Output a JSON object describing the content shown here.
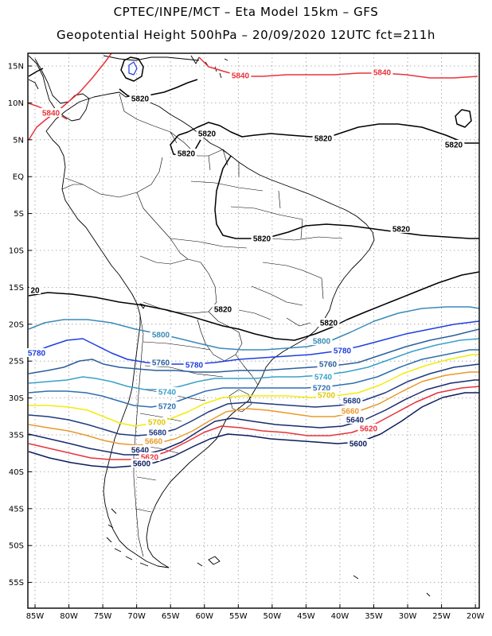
{
  "header": {
    "line1": "CPTEC/INPE/MCT –  Eta Model 15km – GFS",
    "line2": "Geopotential Height 500hPa – 20/09/2020 12UTC fct=211h"
  },
  "axes": {
    "lat_labels": [
      "15N",
      "10N",
      "5N",
      "EQ",
      "5S",
      "10S",
      "15S",
      "20S",
      "25S",
      "30S",
      "35S",
      "40S",
      "45S",
      "50S",
      "55S"
    ],
    "lon_labels": [
      "85W",
      "80W",
      "75W",
      "70W",
      "65W",
      "60W",
      "55W",
      "50W",
      "45W",
      "40W",
      "35W",
      "30W",
      "25W",
      "20W"
    ]
  },
  "colors": {
    "c5600": "#0b1c5c",
    "c5620": "#e8333a",
    "c5640": "#1a2a6c",
    "c5660": "#e89a2a",
    "c5680": "#1f3a80",
    "c5700": "#f2ec0c",
    "c5720": "#2f6fb0",
    "c5740": "#3aa0c8",
    "c5760": "#2a5f9e",
    "c5780": "#1e3ee0",
    "c5800": "#3a8ab8",
    "c5820": "#000000",
    "c5840": "#e8333a",
    "coast": "#000000",
    "grid": "#9a9a9a"
  },
  "contour_labels": [
    {
      "text": "5840",
      "color": "#e8333a"
    },
    {
      "text": "5840",
      "color": "#e8333a"
    },
    {
      "text": "5840",
      "color": "#e8333a"
    },
    {
      "text": "5820",
      "color": "#000000"
    },
    {
      "text": "5820",
      "color": "#000000"
    },
    {
      "text": "5820",
      "color": "#000000"
    },
    {
      "text": "5820",
      "color": "#000000"
    },
    {
      "text": "5820",
      "color": "#000000"
    },
    {
      "text": "5820",
      "color": "#000000"
    },
    {
      "text": "5820",
      "color": "#000000"
    },
    {
      "text": "5820",
      "color": "#000000"
    },
    {
      "text": "5820",
      "color": "#000000"
    },
    {
      "text": "20",
      "color": "#000000"
    },
    {
      "text": "5800",
      "color": "#3a8ab8"
    },
    {
      "text": "5800",
      "color": "#3a8ab8"
    },
    {
      "text": "5780",
      "color": "#1e3ee0"
    },
    {
      "text": "5780",
      "color": "#1e3ee0"
    },
    {
      "text": "5780",
      "color": "#1e3ee0"
    },
    {
      "text": "5760",
      "color": "#2a5f9e"
    },
    {
      "text": "5760",
      "color": "#2a5f9e"
    },
    {
      "text": "5740",
      "color": "#3aa0c8"
    },
    {
      "text": "5740",
      "color": "#3aa0c8"
    },
    {
      "text": "5720",
      "color": "#2f6fb0"
    },
    {
      "text": "5720",
      "color": "#2f6fb0"
    },
    {
      "text": "5700",
      "color": "#e0c800"
    },
    {
      "text": "5700",
      "color": "#e0c800"
    },
    {
      "text": "5680",
      "color": "#1f3a80"
    },
    {
      "text": "5680",
      "color": "#1f3a80"
    },
    {
      "text": "5660",
      "color": "#e89a2a"
    },
    {
      "text": "5660",
      "color": "#e89a2a"
    },
    {
      "text": "5640",
      "color": "#1a2a6c"
    },
    {
      "text": "5640",
      "color": "#1a2a6c"
    },
    {
      "text": "5620",
      "color": "#e8333a"
    },
    {
      "text": "5620",
      "color": "#e8333a"
    },
    {
      "text": "5600",
      "color": "#0b1c5c"
    },
    {
      "text": "5600",
      "color": "#0b1c5c"
    }
  ]
}
